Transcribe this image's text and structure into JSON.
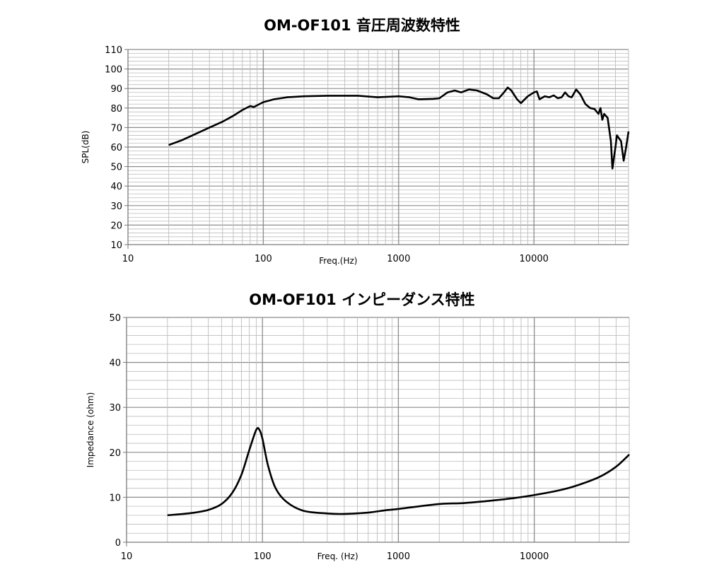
{
  "chart_data": [
    {
      "type": "line",
      "title": "OM-OF101 音圧周波数特性",
      "xlabel": "Freq.(Hz)",
      "ylabel": "SPL(dB)",
      "xscale": "log",
      "xlim": [
        10,
        50000
      ],
      "ylim": [
        10,
        110
      ],
      "xticks": [
        "10",
        "100",
        "1000",
        "10000"
      ],
      "yticks": [
        "10",
        "20",
        "30",
        "40",
        "50",
        "60",
        "70",
        "80",
        "90",
        "100",
        "110"
      ],
      "grid": true,
      "series": [
        {
          "name": "SPL",
          "points": [
            [
              20,
              61
            ],
            [
              25,
              63.5
            ],
            [
              30,
              66
            ],
            [
              40,
              70
            ],
            [
              50,
              73
            ],
            [
              60,
              76
            ],
            [
              70,
              79
            ],
            [
              80,
              81
            ],
            [
              85,
              80.5
            ],
            [
              100,
              83
            ],
            [
              120,
              84.5
            ],
            [
              150,
              85.5
            ],
            [
              200,
              86
            ],
            [
              300,
              86.3
            ],
            [
              400,
              86.3
            ],
            [
              500,
              86.3
            ],
            [
              700,
              85.5
            ],
            [
              1000,
              86
            ],
            [
              1200,
              85.5
            ],
            [
              1400,
              84.5
            ],
            [
              1800,
              84.7
            ],
            [
              2000,
              85
            ],
            [
              2300,
              88
            ],
            [
              2600,
              89
            ],
            [
              2900,
              88
            ],
            [
              3300,
              89.5
            ],
            [
              3800,
              89
            ],
            [
              4500,
              87
            ],
            [
              5000,
              85
            ],
            [
              5500,
              85
            ],
            [
              6000,
              88
            ],
            [
              6400,
              90.5
            ],
            [
              6800,
              89
            ],
            [
              7500,
              84.5
            ],
            [
              8000,
              82.5
            ],
            [
              9000,
              86
            ],
            [
              10000,
              88
            ],
            [
              10500,
              88.5
            ],
            [
              11000,
              84.5
            ],
            [
              12000,
              86
            ],
            [
              13000,
              85.5
            ],
            [
              14000,
              86.5
            ],
            [
              15000,
              85
            ],
            [
              16000,
              85.5
            ],
            [
              17000,
              88
            ],
            [
              18000,
              86
            ],
            [
              19000,
              85.5
            ],
            [
              20500,
              89.5
            ],
            [
              22000,
              87
            ],
            [
              24000,
              82
            ],
            [
              26000,
              80
            ],
            [
              28000,
              79.5
            ],
            [
              30000,
              77
            ],
            [
              31000,
              80
            ],
            [
              32000,
              74
            ],
            [
              33000,
              77
            ],
            [
              35000,
              75
            ],
            [
              37000,
              63
            ],
            [
              38000,
              49
            ],
            [
              40000,
              60
            ],
            [
              41000,
              66
            ],
            [
              44000,
              63
            ],
            [
              46000,
              53
            ],
            [
              48000,
              60
            ],
            [
              50000,
              68
            ]
          ]
        }
      ]
    },
    {
      "type": "line",
      "title": "OM-OF101 インピーダンス特性",
      "xlabel": "Freq. (Hz)",
      "ylabel": "Impedance (ohm)",
      "xscale": "log",
      "xlim": [
        10,
        50000
      ],
      "ylim": [
        0,
        50
      ],
      "xticks": [
        "10",
        "100",
        "1000",
        "10000"
      ],
      "yticks": [
        "0",
        "10",
        "20",
        "30",
        "40",
        "50"
      ],
      "grid": true,
      "series": [
        {
          "name": "Impedance",
          "points": [
            [
              20,
              6
            ],
            [
              30,
              6.5
            ],
            [
              40,
              7.2
            ],
            [
              50,
              8.5
            ],
            [
              60,
              11
            ],
            [
              70,
              15
            ],
            [
              80,
              20.5
            ],
            [
              90,
              25
            ],
            [
              95,
              25
            ],
            [
              100,
              23
            ],
            [
              110,
              17
            ],
            [
              125,
              12
            ],
            [
              150,
              9
            ],
            [
              200,
              7
            ],
            [
              300,
              6.4
            ],
            [
              400,
              6.3
            ],
            [
              600,
              6.6
            ],
            [
              800,
              7.1
            ],
            [
              1000,
              7.4
            ],
            [
              2000,
              8.5
            ],
            [
              3000,
              8.7
            ],
            [
              5000,
              9.3
            ],
            [
              7000,
              9.8
            ],
            [
              10000,
              10.5
            ],
            [
              15000,
              11.5
            ],
            [
              20000,
              12.5
            ],
            [
              30000,
              14.5
            ],
            [
              40000,
              16.8
            ],
            [
              50000,
              19.5
            ]
          ]
        }
      ]
    }
  ]
}
